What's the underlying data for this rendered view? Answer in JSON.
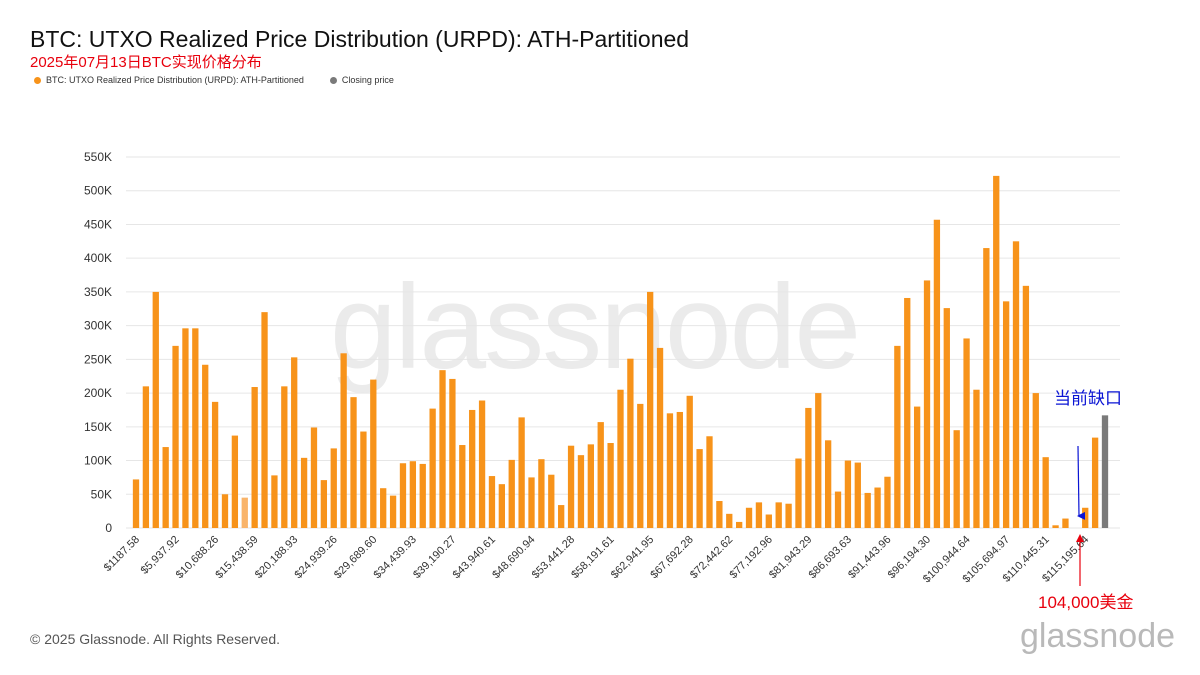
{
  "header": {
    "title": "BTC: UTXO Realized Price Distribution (URPD): ATH-Partitioned",
    "subtitle": "2025年07月13日BTC实现价格分布"
  },
  "legend": [
    {
      "label": "BTC: UTXO Realized Price Distribution (URPD): ATH-Partitioned",
      "color": "#f7931a"
    },
    {
      "label": "Closing price",
      "color": "#7a7a7a"
    }
  ],
  "watermark": "glassnode",
  "annotations": {
    "gap_label": "当前缺口",
    "price_label": "104,000美金"
  },
  "footer": {
    "copyright": "© 2025 Glassnode. All Rights Reserved.",
    "brand": "glassnode"
  },
  "colors": {
    "bar": "#f7931a",
    "bar_light": "#f9b46a",
    "closing": "#7a7a7a",
    "grid": "#e6e6e6",
    "annotation_blue": "#0a14d4",
    "annotation_red": "#e8000d"
  },
  "chart_data": {
    "type": "bar",
    "title": "BTC: UTXO Realized Price Distribution (URPD): ATH-Partitioned",
    "xlabel": "",
    "ylabel": "",
    "ylim": [
      0,
      550000
    ],
    "yticks": [
      0,
      50000,
      100000,
      150000,
      200000,
      250000,
      300000,
      350000,
      400000,
      450000,
      500000,
      550000
    ],
    "ytick_labels": [
      "0",
      "50K",
      "100K",
      "150K",
      "200K",
      "250K",
      "300K",
      "350K",
      "400K",
      "450K",
      "500K",
      "550K"
    ],
    "xtick_labels": [
      "$1187.58",
      "$5,937.92",
      "$10,688.26",
      "$15,438.59",
      "$20,188.93",
      "$24,939.26",
      "$29,689.60",
      "$34,439.93",
      "$39,190.27",
      "$43,940.61",
      "$48,690.94",
      "$53,441.28",
      "$58,191.61",
      "$62,941.95",
      "$67,692.28",
      "$72,442.62",
      "$77,192.96",
      "$81,943.29",
      "$86,693.63",
      "$91,443.96",
      "$96,194.30",
      "$100,944.64",
      "$105,694.97",
      "$110,445.31",
      "$115,195.64"
    ],
    "xtick_every": 4,
    "grid": true,
    "series": [
      {
        "name": "BTC: UTXO Realized Price Distribution (URPD): ATH-Partitioned",
        "values": [
          72000,
          210000,
          350000,
          120000,
          270000,
          296000,
          296000,
          242000,
          187000,
          50000,
          137000,
          45000,
          209000,
          320000,
          78000,
          210000,
          253000,
          104000,
          149000,
          71000,
          118000,
          259000,
          194000,
          143000,
          220000,
          59000,
          48000,
          96000,
          99000,
          95000,
          177000,
          234000,
          221000,
          123000,
          175000,
          189000,
          77000,
          65000,
          101000,
          164000,
          75000,
          102000,
          79000,
          34000,
          122000,
          108000,
          124000,
          157000,
          126000,
          205000,
          251000,
          184000,
          350000,
          267000,
          170000,
          172000,
          196000,
          117000,
          136000,
          40000,
          21000,
          9000,
          30000,
          38000,
          20000,
          38000,
          36000,
          103000,
          178000,
          200000,
          130000,
          54000,
          100000,
          97000,
          52000,
          60000,
          76000,
          270000,
          341000,
          180000,
          367000,
          457000,
          326000,
          145000,
          281000,
          205000,
          415000,
          522000,
          336000,
          425000,
          359000,
          200000,
          105000,
          4000,
          14000,
          0,
          30000,
          134000
        ]
      },
      {
        "name": "Closing price",
        "index": 98,
        "values": [
          167000
        ]
      }
    ]
  }
}
